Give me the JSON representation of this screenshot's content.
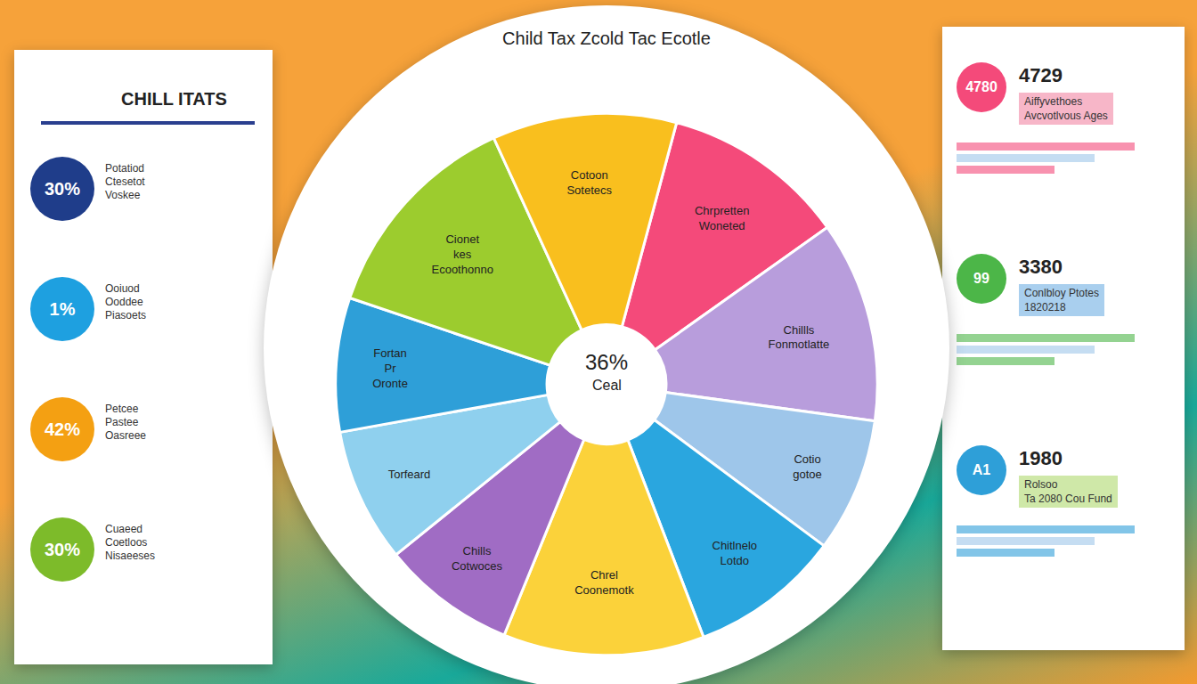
{
  "chart_data": {
    "type": "pie",
    "title": "Child Tax Zcold Tac Ecotle",
    "center_text": "36%",
    "center_subtext": "Ceal",
    "categories": [
      "Chrpretten Woneted",
      "Chillls Fonmotlatte",
      "Cotio gotoe",
      "Chitlnelo Lotdo",
      "Chrel Coonemotk",
      "Chills Cotwoces",
      "Torfeard",
      "Fortan Pr Oronte",
      "Cionet kes Ecoothonno",
      "Cotoon Sotetecs"
    ],
    "values": [
      11,
      12,
      8,
      9,
      12,
      8,
      8,
      8,
      13,
      11
    ],
    "colors": [
      "#f44a7a",
      "#b89ddc",
      "#9ec6ea",
      "#2aa6df",
      "#fbd23a",
      "#a06cc4",
      "#8fd0ee",
      "#2e9fd8",
      "#9ccc2e",
      "#f9bf1e"
    ],
    "data_labels": false
  },
  "left_panel": {
    "title": "CHILL ITATS",
    "items": [
      {
        "badge": "30%",
        "color": "#1f3d8a",
        "lines": [
          "Potatiod",
          "Ctesetot",
          "Voskee"
        ]
      },
      {
        "badge": "1%",
        "color": "#1ea0e0",
        "lines": [
          "Ooiuod",
          "Ooddee",
          "Piasoets"
        ]
      },
      {
        "badge": "42%",
        "color": "#f4a012",
        "lines": [
          "Petcee",
          "Pastee",
          "Oasreee"
        ]
      },
      {
        "badge": "30%",
        "color": "#7dbb2a",
        "lines": [
          "Cuaeed",
          "Coetloos",
          "Nisaeeses"
        ]
      }
    ]
  },
  "right_panel": {
    "items": [
      {
        "badge": "4780",
        "color": "#f44a7a",
        "number": "4729",
        "lines": [
          "Aiffyvethoes",
          "Avcvotlvous Ages"
        ]
      },
      {
        "badge": "99",
        "color": "#4cb648",
        "number": "3380",
        "lines": [
          "Conlbloy Ptotes",
          "1820218"
        ]
      },
      {
        "badge": "A1",
        "color": "#2e9fd8",
        "number": "1980",
        "lines": [
          "Rolsoo",
          "Ta 2080 Cou Fund"
        ]
      }
    ]
  }
}
